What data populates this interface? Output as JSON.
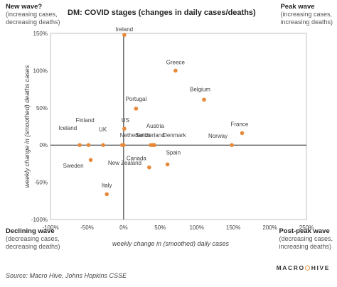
{
  "corners": {
    "top_left": {
      "title": "New wave?",
      "lines": [
        "(increasing cases,",
        "decreasing deaths)"
      ]
    },
    "top_right": {
      "title": "Peak wave",
      "lines": [
        "(increasing cases,",
        "increasing deaths)"
      ]
    },
    "bottom_left": {
      "title": "Declining wave",
      "lines": [
        "(decreasing cases,",
        "decreasing deaths)"
      ]
    },
    "bottom_right": {
      "title": "Post-peak wave",
      "lines": [
        "(decreasing cases,",
        "increasing deaths)"
      ]
    }
  },
  "source": "Source:  Macro Hive, Johns Hopkins CSSE",
  "logo": {
    "left": "MACRO",
    "right": "HIVE"
  },
  "colors": {
    "point": "#e8893a",
    "axis": "#222222",
    "frame": "#bfbfbf",
    "text": "#404040"
  },
  "chart_data": {
    "type": "scatter",
    "title": "DM: COVID stages (changes in daily cases/deaths)",
    "xlabel": "weekly change in (smoothed) daily cases",
    "ylabel": "weekly change in (smoothed) deaths cases",
    "xlim": [
      -100,
      250
    ],
    "ylim": [
      -100,
      150
    ],
    "xticks": [
      -100,
      -50,
      0,
      50,
      100,
      150,
      200,
      250
    ],
    "yticks": [
      -100,
      -50,
      0,
      50,
      100,
      150
    ],
    "xtick_labels": [
      "-100%",
      "-50%",
      "0%",
      "50%",
      "100%",
      "150%",
      "200%",
      "250%"
    ],
    "ytick_labels": [
      "-100%",
      "-50%",
      "0%",
      "50%",
      "100%",
      "150%"
    ],
    "grid": false,
    "points": [
      {
        "label": "Ireland",
        "x": 1,
        "y": 148
      },
      {
        "label": "Greece",
        "x": 71,
        "y": 100
      },
      {
        "label": "Belgium",
        "x": 110,
        "y": 61
      },
      {
        "label": "Portugal",
        "x": 17,
        "y": 49
      },
      {
        "label": "US",
        "x": 1,
        "y": 22
      },
      {
        "label": "France",
        "x": 162,
        "y": 16
      },
      {
        "label": "Norway",
        "x": 148,
        "y": 0
      },
      {
        "label": "Finland",
        "x": -48,
        "y": 0
      },
      {
        "label": "Iceland",
        "x": -60,
        "y": 0
      },
      {
        "label": "UK",
        "x": -28,
        "y": 0
      },
      {
        "label": "Netherlands",
        "x": -2,
        "y": 0
      },
      {
        "label": "Austria",
        "x": 37,
        "y": 0
      },
      {
        "label": "Switzerland",
        "x": 40,
        "y": 0
      },
      {
        "label": "Denmark",
        "x": 42,
        "y": 0
      },
      {
        "label": "Canada",
        "x": 35,
        "y": -30
      },
      {
        "label": "Spain",
        "x": 60,
        "y": -26
      },
      {
        "label": "Sweden",
        "x": -45,
        "y": -20
      },
      {
        "label": "New Zealand",
        "x": 0,
        "y": 0
      },
      {
        "label": "Italy",
        "x": -23,
        "y": -66
      }
    ]
  }
}
